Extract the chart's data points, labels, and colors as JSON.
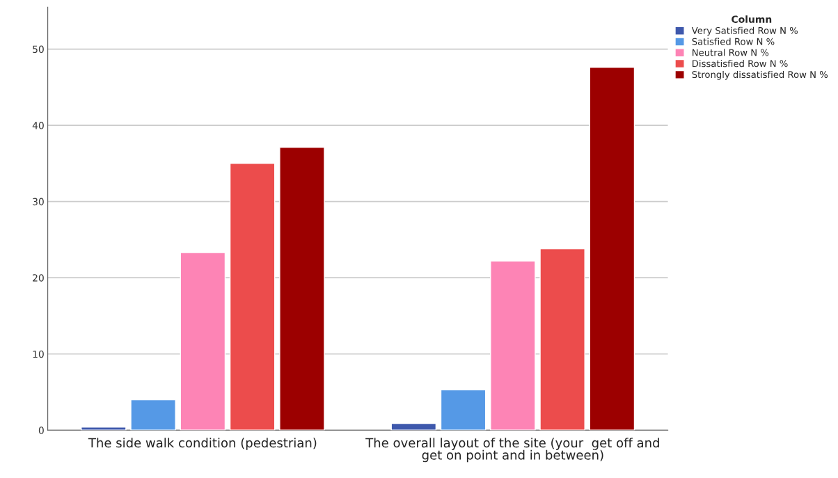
{
  "chart_data": {
    "type": "bar",
    "categories": [
      "The side walk condition (pedestrian)",
      "The overall layout of the site (your  get off and get on point and in between)"
    ],
    "series": [
      {
        "name": "Very Satisfied Row N %",
        "color": "#3e58ac",
        "values": [
          0.4,
          0.9
        ]
      },
      {
        "name": "Satisfied Row N %",
        "color": "#5599e6",
        "values": [
          4.0,
          5.3
        ]
      },
      {
        "name": "Neutral Row N %",
        "color": "#fd84b5",
        "values": [
          23.3,
          22.2
        ]
      },
      {
        "name": "Dissatisfied Row N %",
        "color": "#ec4c4c",
        "values": [
          35.0,
          23.8
        ]
      },
      {
        "name": "Strongly dissatisfied Row N %",
        "color": "#9c0000",
        "values": [
          37.1,
          47.6
        ]
      }
    ],
    "legend_title": "Column",
    "ylim": [
      0,
      55.5
    ],
    "yticks": [
      0,
      10,
      20,
      30,
      40,
      50
    ],
    "grid": "y",
    "legend": "top right"
  }
}
